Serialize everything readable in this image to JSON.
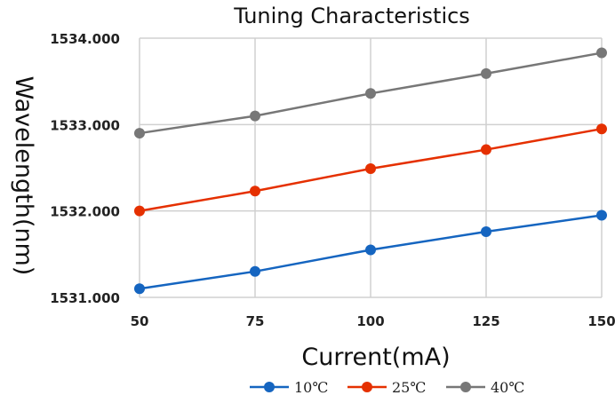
{
  "chart_data": {
    "type": "line",
    "title": "Tuning Characteristics",
    "xlabel": "Current(mA)",
    "ylabel": "Wavelength(nm)",
    "x": [
      50,
      75,
      100,
      125,
      150
    ],
    "x_tick_labels": [
      "50",
      "75",
      "100",
      "125",
      "150"
    ],
    "xlim": [
      50,
      150
    ],
    "ylim": [
      1531,
      1534
    ],
    "y_ticks": [
      1531,
      1532,
      1533,
      1534
    ],
    "y_tick_labels": [
      "1531.000",
      "1532.000",
      "1533.000",
      "1534.000"
    ],
    "grid": true,
    "legend_position": "bottom",
    "series": [
      {
        "name": "10℃",
        "color": "#1565c0",
        "values": [
          1531.1,
          1531.3,
          1531.55,
          1531.76,
          1531.95
        ]
      },
      {
        "name": "25℃",
        "color": "#e53000",
        "values": [
          1532.0,
          1532.23,
          1532.49,
          1532.71,
          1532.95
        ]
      },
      {
        "name": "40℃",
        "color": "#777777",
        "values": [
          1532.9,
          1533.1,
          1533.36,
          1533.59,
          1533.83
        ]
      }
    ]
  }
}
